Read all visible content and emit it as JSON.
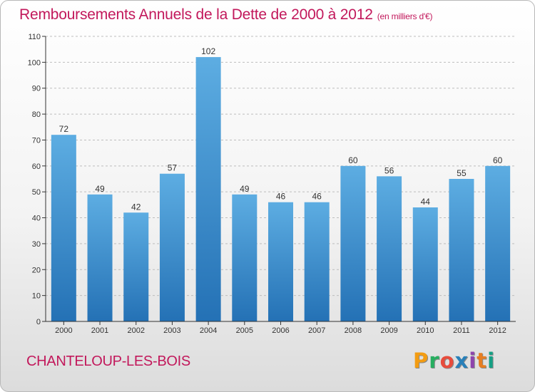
{
  "title": "Remboursements Annuels de la Dette de 2000 à 2012",
  "subtitle": "(en milliers d'€)",
  "commune": "CHANTELOUP-LES-BOIS",
  "logo": {
    "letters": [
      "P",
      "r",
      "o",
      "x",
      "i",
      "t",
      "i"
    ]
  },
  "colors": {
    "title": "#c2185b",
    "bar_top": "#5dade2",
    "bar_bottom": "#2471b5",
    "axis": "#333333",
    "grid": "#bdbdbd"
  },
  "chart_data": {
    "type": "bar",
    "title": "Remboursements Annuels de la Dette de 2000 à 2012",
    "subtitle": "(en milliers d'€)",
    "xlabel": "",
    "ylabel": "",
    "categories": [
      "2000",
      "2001",
      "2002",
      "2003",
      "2004",
      "2005",
      "2006",
      "2007",
      "2008",
      "2009",
      "2010",
      "2011",
      "2012"
    ],
    "values": [
      72,
      49,
      42,
      57,
      102,
      49,
      46,
      46,
      60,
      56,
      44,
      55,
      60
    ],
    "ylim": [
      0,
      110
    ],
    "yticks": [
      0,
      10,
      20,
      30,
      40,
      50,
      60,
      70,
      80,
      90,
      100,
      110
    ],
    "grid": "horizontal dashed",
    "legend": "none"
  }
}
